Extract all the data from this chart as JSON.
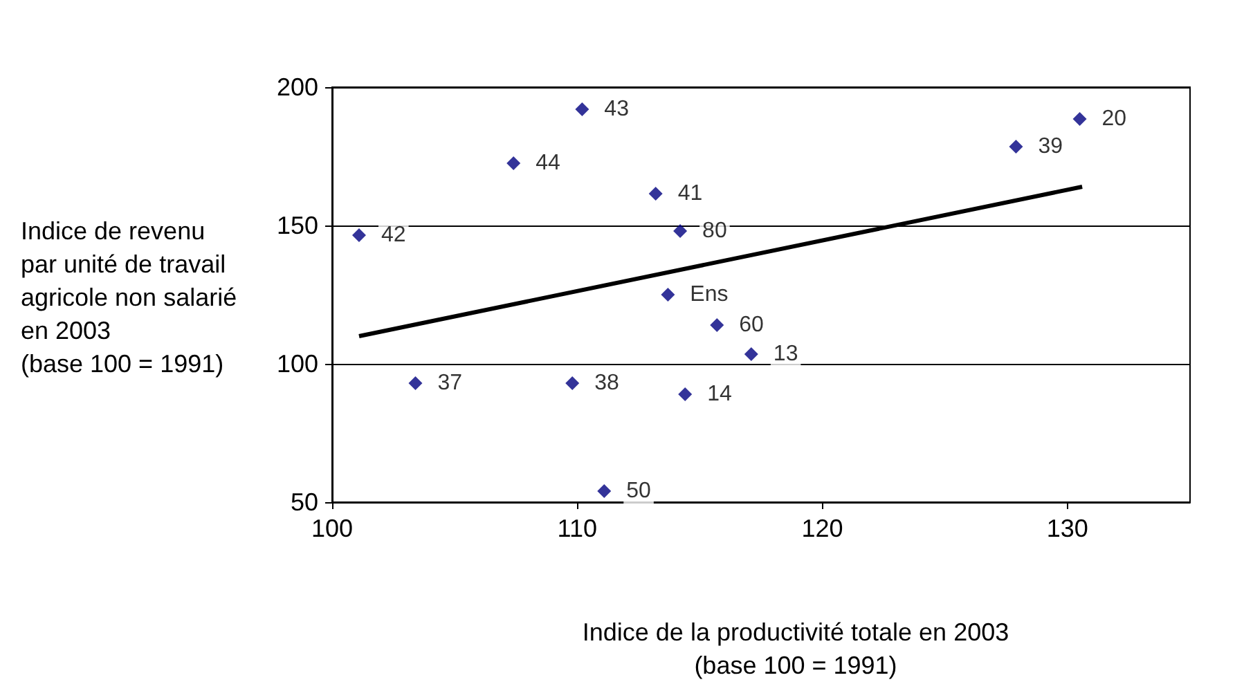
{
  "chart_data": {
    "type": "scatter",
    "xlabel": "Indice de la productivité totale en 2003\n(base 100 = 1991)",
    "ylabel": "Indice de revenu\npar unité de travail\nagricole non salarié\nen 2003\n(base 100 = 1991)",
    "series": [
      {
        "type": "scatter",
        "color": "#000080",
        "marker": "diamond",
        "x": [
          101.1,
          103.4,
          107.4,
          110.2,
          109.8,
          111.1,
          113.2,
          114.2,
          113.7,
          114.4,
          115.7,
          117.1,
          127.9,
          130.5
        ],
        "values": [
          146.5,
          93,
          172.5,
          192,
          93,
          54,
          161.5,
          148,
          125,
          89,
          114,
          103.5,
          178.5,
          188.5
        ]
      },
      {
        "type": "line",
        "color": "#000000",
        "marker": "none",
        "x": [
          101.1,
          130.6
        ],
        "values": [
          110,
          164
        ]
      }
    ],
    "annotations": [
      {
        "text": "42",
        "x": 101.1,
        "y": 146.5
      },
      {
        "text": "37",
        "x": 103.4,
        "y": 93
      },
      {
        "text": "44",
        "x": 107.4,
        "y": 172.5
      },
      {
        "text": "43",
        "x": 110.2,
        "y": 192
      },
      {
        "text": "38",
        "x": 109.8,
        "y": 93
      },
      {
        "text": "50",
        "x": 111.1,
        "y": 54
      },
      {
        "text": "41",
        "x": 113.2,
        "y": 161.5
      },
      {
        "text": "80",
        "x": 114.2,
        "y": 148
      },
      {
        "text": "Ens",
        "x": 113.7,
        "y": 125
      },
      {
        "text": "14",
        "x": 114.4,
        "y": 89
      },
      {
        "text": "60",
        "x": 115.7,
        "y": 114
      },
      {
        "text": "13",
        "x": 117.1,
        "y": 103.5
      },
      {
        "text": "39",
        "x": 127.9,
        "y": 178.5
      },
      {
        "text": "20",
        "x": 130.5,
        "y": 188.5
      }
    ],
    "xlim": [
      100,
      135
    ],
    "xticks": [
      100,
      110,
      120,
      130
    ],
    "ylim": [
      50,
      200
    ],
    "yticks": [
      50,
      100,
      150,
      200
    ],
    "grid": "y"
  }
}
